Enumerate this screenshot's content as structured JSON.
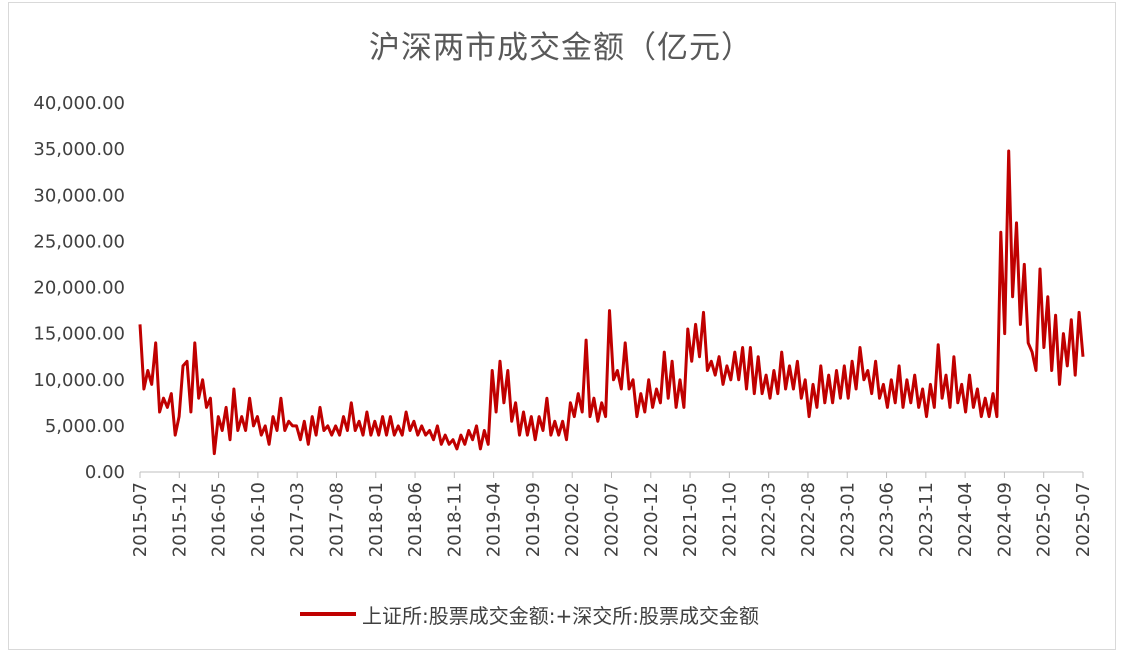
{
  "chart_data": {
    "type": "line",
    "title": "沪深两市成交金额（亿元）",
    "xlabel": "",
    "ylabel": "",
    "ylim": [
      0,
      40000
    ],
    "yticks": [
      "0.00",
      "5,000.00",
      "10,000.00",
      "15,000.00",
      "20,000.00",
      "25,000.00",
      "30,000.00",
      "35,000.00",
      "40,000.00"
    ],
    "xticks": [
      "2015-07",
      "2015-12",
      "2016-05",
      "2016-10",
      "2017-03",
      "2017-08",
      "2018-01",
      "2018-06",
      "2018-11",
      "2019-04",
      "2019-09",
      "2020-02",
      "2020-07",
      "2020-12",
      "2021-05",
      "2021-10",
      "2022-03",
      "2022-08",
      "2023-01",
      "2023-06",
      "2023-11",
      "2024-04",
      "2024-09",
      "2025-02",
      "2025-07"
    ],
    "grid": false,
    "legend_position": "bottom",
    "series": [
      {
        "name": "上证所:股票成交金额:+深交所:股票成交金额",
        "color": "#c00000",
        "monthly_estimate": [
          [
            16000,
            9000,
            11000,
            9500,
            14000,
            6500,
            8000,
            7000,
            8500,
            4000
          ],
          [
            6000,
            11500,
            12000,
            6500,
            14000,
            8000,
            10000,
            7000,
            8000,
            2000
          ],
          [
            6000,
            4500,
            7000,
            3500,
            9000,
            4500,
            6000,
            4500,
            8000,
            5000
          ],
          [
            6000,
            4000,
            5000,
            3000,
            6000,
            4500,
            8000,
            4500,
            5500,
            5000
          ],
          [
            5000,
            3500,
            5500,
            3000,
            6000,
            4000,
            7000,
            4500,
            5000,
            4000
          ],
          [
            5000,
            4000,
            6000,
            4500,
            7500,
            4500,
            5500,
            4000,
            6500,
            4000
          ],
          [
            5500,
            4000,
            6000,
            4000,
            6000,
            4000,
            5000,
            4000,
            6500,
            4500
          ],
          [
            5500,
            4000,
            5000,
            4000,
            4500,
            3500,
            5000,
            3000,
            4000,
            3000
          ],
          [
            3500,
            2500,
            4000,
            3000,
            4500,
            3500,
            5000,
            2500,
            4500,
            3000
          ],
          [
            11000,
            6500,
            12000,
            7500,
            11000,
            5500,
            7500,
            4000,
            6500,
            4000
          ],
          [
            6000,
            3500,
            6000,
            4500,
            8000,
            4000,
            5500,
            4000,
            5500,
            3500
          ],
          [
            7500,
            6000,
            8500,
            6500,
            14300,
            6000,
            8000,
            5500,
            7500,
            6000
          ],
          [
            17500,
            10000,
            11000,
            9000,
            14000,
            9000,
            10000,
            6000,
            8500,
            6500
          ],
          [
            10000,
            7000,
            9000,
            7500,
            13000,
            8000,
            12000,
            7000,
            10000,
            7000
          ],
          [
            15500,
            12000,
            16000,
            12500,
            17300,
            11000,
            12000,
            10500,
            12500,
            9500
          ],
          [
            11500,
            10000,
            13000,
            10000,
            13500,
            9000,
            13500,
            8500,
            12500,
            8500
          ],
          [
            10500,
            8000,
            11000,
            8500,
            13000,
            9000,
            11500,
            9000,
            12000,
            8000
          ],
          [
            10000,
            6000,
            9500,
            7000,
            11500,
            7500,
            10500,
            7500,
            11000,
            8000
          ],
          [
            11500,
            8000,
            12000,
            9000,
            13500,
            10000,
            11000,
            8500,
            12000,
            8000
          ],
          [
            9500,
            7000,
            10000,
            7500,
            11500,
            7000,
            10000,
            7500,
            10500,
            7000
          ],
          [
            9000,
            6000,
            9500,
            7000,
            13800,
            8000,
            10500,
            7000,
            12500,
            7500
          ],
          [
            9500,
            6500,
            10500,
            7000,
            9000,
            6000,
            8000,
            6000,
            8500,
            6000
          ],
          [
            26000,
            15000,
            34800,
            19000,
            27000,
            16000,
            22500,
            14000,
            13000,
            11000
          ],
          [
            22000,
            13500,
            19000,
            11000,
            17000,
            9500,
            15000,
            11500,
            16500,
            10500
          ],
          [
            17300,
            12500
          ]
        ]
      }
    ]
  },
  "legend": {
    "label": "上证所:股票成交金额:+深交所:股票成交金额"
  }
}
